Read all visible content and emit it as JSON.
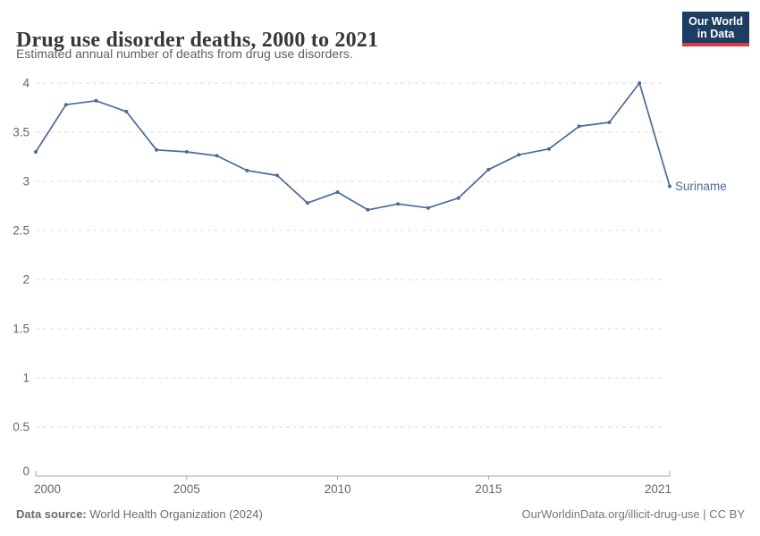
{
  "header": {
    "title": "Drug use disorder deaths, 2000 to 2021",
    "subtitle": "Estimated annual number of deaths from drug use disorders.",
    "logo": {
      "line1": "Our World",
      "line2": "in Data",
      "bg_color": "#1d3d63",
      "stripe_color": "#d73a49",
      "text_color": "#ffffff"
    }
  },
  "chart_data": {
    "type": "line",
    "title": "Drug use disorder deaths, 2000 to 2021",
    "subtitle": "Estimated annual number of deaths from drug use disorders.",
    "xlabel": "",
    "ylabel": "",
    "x": [
      2000,
      2001,
      2002,
      2003,
      2004,
      2005,
      2006,
      2007,
      2008,
      2009,
      2010,
      2011,
      2012,
      2013,
      2014,
      2015,
      2016,
      2017,
      2018,
      2019,
      2020,
      2021
    ],
    "series": [
      {
        "name": "Suriname",
        "color": "#4C6A9C",
        "values": [
          3.3,
          3.78,
          3.82,
          3.71,
          3.32,
          3.3,
          3.26,
          3.11,
          3.06,
          2.78,
          2.89,
          2.71,
          2.77,
          2.73,
          2.83,
          3.12,
          3.27,
          3.33,
          3.56,
          3.6,
          4.0,
          2.95
        ]
      }
    ],
    "xticks": [
      2000,
      2005,
      2010,
      2015,
      2021
    ],
    "yticks": [
      0,
      0.5,
      1,
      1.5,
      2,
      2.5,
      3,
      3.5,
      4
    ],
    "xlim": [
      2000,
      2021
    ],
    "ylim": [
      0,
      4
    ],
    "grid": "horizontal-dashed",
    "grid_color": "#dddddd",
    "axis_color": "#a3a3a3",
    "tick_label_color": "#666666",
    "legend_position": "entity-label-at-line-end",
    "entity_label": "Suriname"
  },
  "footer": {
    "source_label": "Data source:",
    "source_value": " World Health Organization (2024)",
    "credit": "OurWorldinData.org/illicit-drug-use | CC BY"
  }
}
